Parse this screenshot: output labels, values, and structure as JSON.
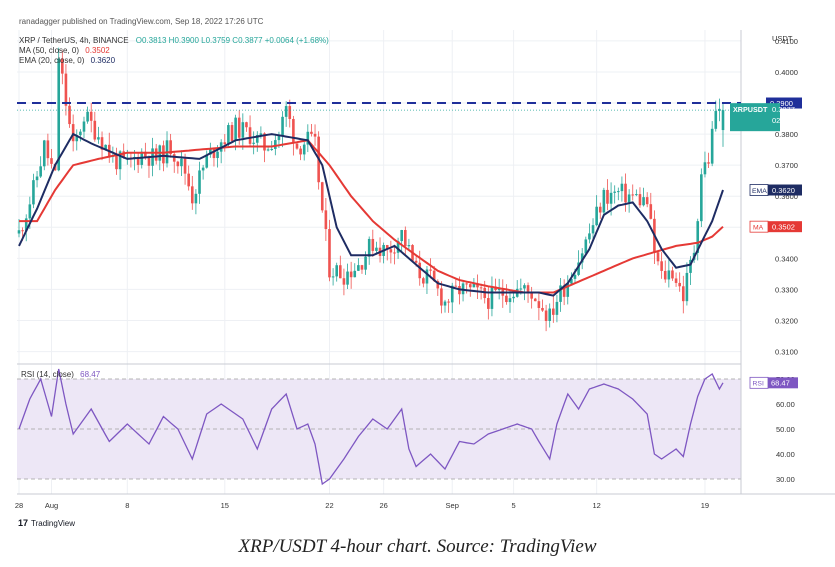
{
  "header": {
    "published": "ranadagger published on TradingView.com, Sep 18, 2022 17:26 UTC",
    "symbol_line": "XRP / TetherUS, 4h, BINANCE",
    "ohlc": "O0.3813 H0.3900 L0.3759 C0.3877 +0.0064 (+1.68%)",
    "ma_label": "MA (50, close, 0)",
    "ma_value": "0.3502",
    "ema_label": "EMA (20, close, 0)",
    "ema_value": "0.3620"
  },
  "price_axis": {
    "currency": "USDT",
    "ticks": [
      "0.4100",
      "0.4000",
      "0.3900",
      "0.3800",
      "0.3700",
      "0.3600",
      "0.3500",
      "0.3400",
      "0.3300",
      "0.3200",
      "0.3100"
    ]
  },
  "price_labels": {
    "horizontal_line": "0.3900",
    "symbol": "XRPUSDT",
    "last_price": "0.3877",
    "countdown": "02:33:34",
    "ema_tag": "EMA",
    "ema_value": "0.3620",
    "ma_tag": "MA",
    "ma_value": "0.3502"
  },
  "rsi": {
    "label": "RSI (14, close)",
    "value": "68.47",
    "tag": "RSI",
    "ticks": [
      "70.00",
      "60.00",
      "50.00",
      "40.00",
      "30.00"
    ]
  },
  "time_axis": [
    "28",
    "Aug",
    "8",
    "15",
    "22",
    "26",
    "Sep",
    "5",
    "12",
    "19"
  ],
  "footer": {
    "brand": "TradingView"
  },
  "caption": "XRP/USDT 4-hour chart. Source: TradingView",
  "colors": {
    "up": "#26a69a",
    "down": "#ef5350",
    "ema": "#1e2c63",
    "ma": "#e53935",
    "resistance": "#1f2f9a",
    "rsi_line": "#7e57c2",
    "rsi_band": "#ede7f6",
    "grid": "#eef0f4"
  },
  "chart_data": {
    "type": "candlestick",
    "symbol": "XRPUSDT",
    "timeframe": "4h",
    "exchange": "BINANCE",
    "horizontal_line": 0.39,
    "last": {
      "open": 0.3813,
      "high": 0.39,
      "low": 0.3759,
      "close": 0.3877,
      "change": 0.0064,
      "change_pct": 1.68
    },
    "x_ticks": [
      "28",
      "Aug",
      "8",
      "15",
      "22",
      "26",
      "Sep",
      "5",
      "12",
      "19"
    ],
    "ylim": [
      0.306,
      0.4135
    ],
    "close_path": [
      [
        0,
        0.348
      ],
      [
        4,
        0.362
      ],
      [
        7,
        0.376
      ],
      [
        10,
        0.366
      ],
      [
        11,
        0.405
      ],
      [
        13,
        0.39
      ],
      [
        15,
        0.375
      ],
      [
        18,
        0.386
      ],
      [
        22,
        0.38
      ],
      [
        26,
        0.372
      ],
      [
        30,
        0.37
      ],
      [
        34,
        0.374
      ],
      [
        38,
        0.372
      ],
      [
        42,
        0.376
      ],
      [
        46,
        0.368
      ],
      [
        48,
        0.36
      ],
      [
        52,
        0.372
      ],
      [
        56,
        0.378
      ],
      [
        60,
        0.382
      ],
      [
        64,
        0.38
      ],
      [
        68,
        0.376
      ],
      [
        72,
        0.38
      ],
      [
        74,
        0.388
      ],
      [
        77,
        0.376
      ],
      [
        80,
        0.378
      ],
      [
        82,
        0.376
      ],
      [
        84,
        0.355
      ],
      [
        86,
        0.337
      ],
      [
        90,
        0.335
      ],
      [
        94,
        0.338
      ],
      [
        98,
        0.345
      ],
      [
        102,
        0.342
      ],
      [
        106,
        0.348
      ],
      [
        108,
        0.342
      ],
      [
        110,
        0.336
      ],
      [
        114,
        0.333
      ],
      [
        118,
        0.326
      ],
      [
        122,
        0.33
      ],
      [
        126,
        0.329
      ],
      [
        130,
        0.327
      ],
      [
        134,
        0.329
      ],
      [
        138,
        0.33
      ],
      [
        142,
        0.329
      ],
      [
        144,
        0.326
      ],
      [
        147,
        0.321
      ],
      [
        149,
        0.327
      ],
      [
        152,
        0.333
      ],
      [
        155,
        0.34
      ],
      [
        158,
        0.348
      ],
      [
        162,
        0.36
      ],
      [
        166,
        0.361
      ],
      [
        170,
        0.36
      ],
      [
        174,
        0.358
      ],
      [
        176,
        0.342
      ],
      [
        178,
        0.334
      ],
      [
        181,
        0.336
      ],
      [
        184,
        0.328
      ],
      [
        187,
        0.343
      ],
      [
        188,
        0.355
      ],
      [
        189,
        0.368
      ],
      [
        191,
        0.372
      ],
      [
        193,
        0.388
      ],
      [
        195,
        0.385
      ]
    ],
    "ema_path": [
      [
        0,
        0.344
      ],
      [
        5,
        0.356
      ],
      [
        10,
        0.37
      ],
      [
        15,
        0.38
      ],
      [
        20,
        0.377
      ],
      [
        30,
        0.372
      ],
      [
        40,
        0.373
      ],
      [
        50,
        0.372
      ],
      [
        60,
        0.378
      ],
      [
        70,
        0.38
      ],
      [
        80,
        0.378
      ],
      [
        84,
        0.37
      ],
      [
        88,
        0.35
      ],
      [
        92,
        0.341
      ],
      [
        98,
        0.341
      ],
      [
        104,
        0.344
      ],
      [
        110,
        0.338
      ],
      [
        116,
        0.332
      ],
      [
        122,
        0.33
      ],
      [
        130,
        0.329
      ],
      [
        140,
        0.329
      ],
      [
        144,
        0.329
      ],
      [
        148,
        0.328
      ],
      [
        152,
        0.332
      ],
      [
        158,
        0.343
      ],
      [
        162,
        0.354
      ],
      [
        166,
        0.357
      ],
      [
        170,
        0.358
      ],
      [
        174,
        0.352
      ],
      [
        178,
        0.343
      ],
      [
        182,
        0.337
      ],
      [
        186,
        0.338
      ],
      [
        189,
        0.345
      ],
      [
        192,
        0.352
      ],
      [
        195,
        0.362
      ]
    ],
    "ma_path": [
      [
        0,
        0.352
      ],
      [
        5,
        0.352
      ],
      [
        10,
        0.362
      ],
      [
        15,
        0.37
      ],
      [
        22,
        0.372
      ],
      [
        30,
        0.374
      ],
      [
        40,
        0.374
      ],
      [
        50,
        0.375
      ],
      [
        60,
        0.376
      ],
      [
        70,
        0.376
      ],
      [
        80,
        0.378
      ],
      [
        86,
        0.37
      ],
      [
        92,
        0.36
      ],
      [
        98,
        0.352
      ],
      [
        104,
        0.346
      ],
      [
        110,
        0.341
      ],
      [
        116,
        0.336
      ],
      [
        122,
        0.333
      ],
      [
        130,
        0.331
      ],
      [
        140,
        0.329
      ],
      [
        148,
        0.329
      ],
      [
        152,
        0.331
      ],
      [
        158,
        0.334
      ],
      [
        164,
        0.337
      ],
      [
        170,
        0.34
      ],
      [
        176,
        0.342
      ],
      [
        182,
        0.344
      ],
      [
        188,
        0.345
      ],
      [
        192,
        0.347
      ],
      [
        195,
        0.3502
      ]
    ],
    "rsi_path": [
      [
        0,
        50
      ],
      [
        3,
        62
      ],
      [
        6,
        70
      ],
      [
        9,
        55
      ],
      [
        11,
        74
      ],
      [
        13,
        60
      ],
      [
        15,
        48
      ],
      [
        20,
        58
      ],
      [
        25,
        45
      ],
      [
        30,
        52
      ],
      [
        36,
        44
      ],
      [
        40,
        55
      ],
      [
        44,
        50
      ],
      [
        48,
        38
      ],
      [
        52,
        56
      ],
      [
        56,
        60
      ],
      [
        62,
        54
      ],
      [
        66,
        42
      ],
      [
        70,
        58
      ],
      [
        74,
        64
      ],
      [
        77,
        50
      ],
      [
        80,
        52
      ],
      [
        82,
        44
      ],
      [
        84,
        28
      ],
      [
        86,
        30
      ],
      [
        90,
        38
      ],
      [
        94,
        47
      ],
      [
        98,
        54
      ],
      [
        102,
        50
      ],
      [
        106,
        58
      ],
      [
        108,
        42
      ],
      [
        110,
        35
      ],
      [
        114,
        40
      ],
      [
        118,
        34
      ],
      [
        122,
        45
      ],
      [
        126,
        44
      ],
      [
        130,
        48
      ],
      [
        134,
        50
      ],
      [
        138,
        52
      ],
      [
        142,
        50
      ],
      [
        144,
        45
      ],
      [
        147,
        38
      ],
      [
        149,
        52
      ],
      [
        152,
        64
      ],
      [
        155,
        58
      ],
      [
        158,
        66
      ],
      [
        162,
        68
      ],
      [
        166,
        66
      ],
      [
        170,
        62
      ],
      [
        174,
        56
      ],
      [
        176,
        40
      ],
      [
        178,
        38
      ],
      [
        182,
        42
      ],
      [
        184,
        39
      ],
      [
        186,
        52
      ],
      [
        188,
        63
      ],
      [
        190,
        70
      ],
      [
        192,
        72
      ],
      [
        194,
        66
      ],
      [
        195,
        68.47
      ]
    ],
    "rsi_ylim": [
      24,
      76
    ]
  }
}
